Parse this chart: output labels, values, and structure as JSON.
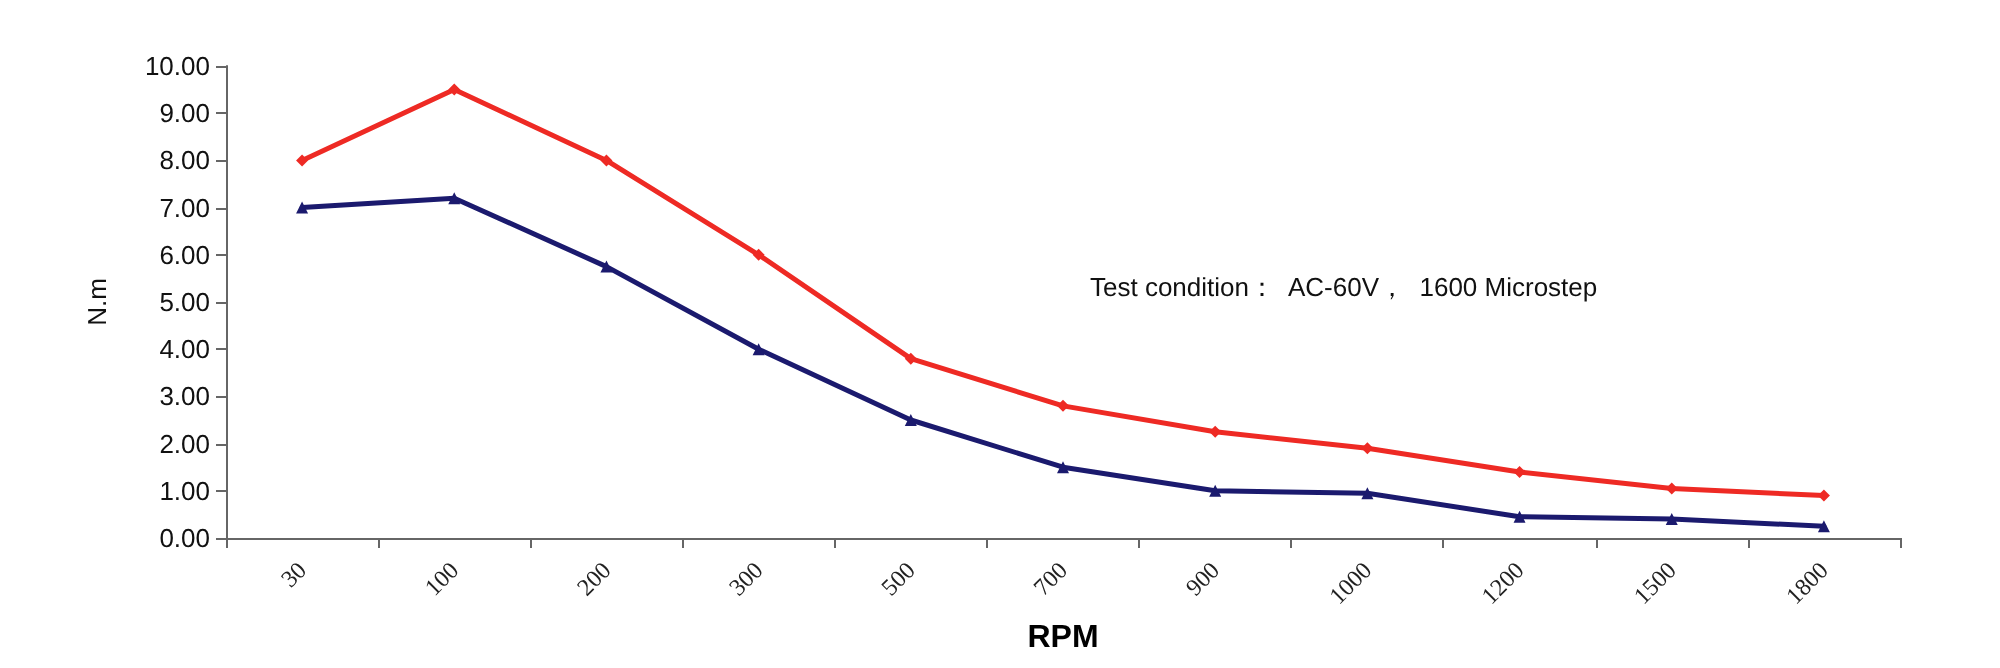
{
  "chart_data": {
    "type": "line",
    "xlabel": "RPM",
    "ylabel": "N.m",
    "categories": [
      "30",
      "100",
      "200",
      "300",
      "500",
      "700",
      "900",
      "1000",
      "1200",
      "1500",
      "1800"
    ],
    "series": [
      {
        "color": "#ee2a24",
        "marker": "diamond",
        "values": [
          8,
          9.5,
          8,
          6,
          3.8,
          2.8,
          2.25,
          1.9,
          1.4,
          1.05,
          0.9
        ]
      },
      {
        "color": "#1b1a6e",
        "marker": "triangle",
        "values": [
          7,
          7.2,
          5.75,
          4,
          2.5,
          1.5,
          1.0,
          0.95,
          0.45,
          0.4,
          0.25
        ]
      }
    ],
    "ylim": [
      0,
      10
    ],
    "yticks": [
      {
        "value": 0,
        "label": "0.00"
      },
      {
        "value": 1,
        "label": "1.00"
      },
      {
        "value": 2,
        "label": "2.00"
      },
      {
        "value": 3,
        "label": "3.00"
      },
      {
        "value": 4,
        "label": "4.00"
      },
      {
        "value": 5,
        "label": "5.00"
      },
      {
        "value": 6,
        "label": "6.00"
      },
      {
        "value": 7,
        "label": "7.00"
      },
      {
        "value": 8,
        "label": "8.00"
      },
      {
        "value": 9,
        "label": "9.00"
      },
      {
        "value": 10,
        "label": "10.00"
      }
    ],
    "grid": false,
    "annotations": [
      "Test condition：  AC-60V，  1600 Microstep"
    ]
  }
}
